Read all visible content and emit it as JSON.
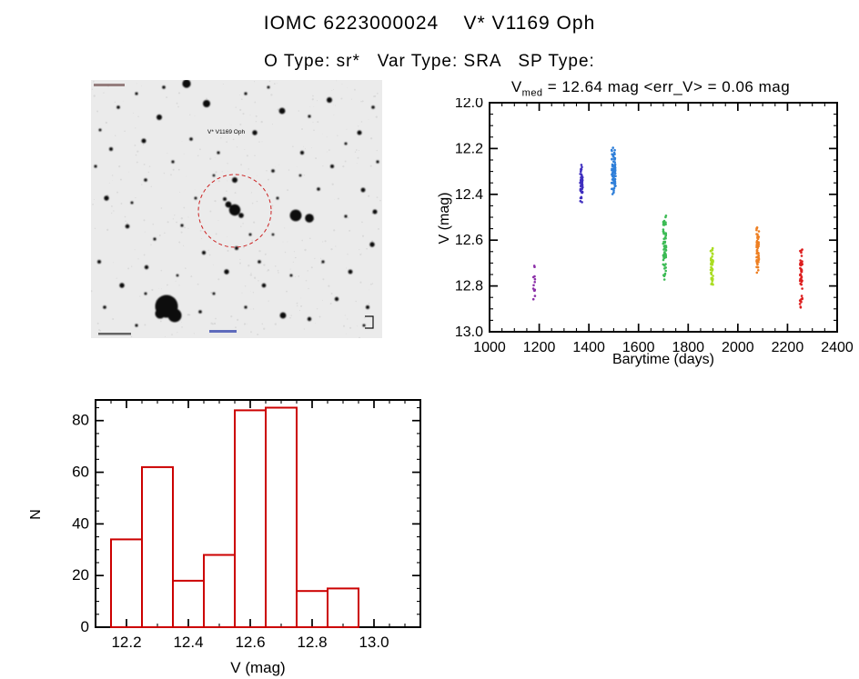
{
  "header": {
    "title": "IOMC 6223000024    V* V1169 Oph",
    "subtitle": "O Type: sr*   Var Type: SRA   SP Type:"
  },
  "finder": {
    "label": "V* V1169 Oph",
    "circle_color": "#cc2222",
    "background": "#ebebeb",
    "star_color": "#0a0a0a",
    "stars": [
      [
        158,
        143,
        6.2
      ],
      [
        151,
        137,
        3.4
      ],
      [
        165,
        149,
        2.8
      ],
      [
        147,
        131,
        2.0
      ],
      [
        158,
        110,
        3.0
      ],
      [
        160,
        185,
        2.0
      ],
      [
        225,
        149,
        6.4
      ],
      [
        240,
        152,
        4.8
      ],
      [
        83,
        249,
        12.5
      ],
      [
        92,
        259,
        7.5
      ],
      [
        76,
        257,
        5.5
      ],
      [
        105,
        4,
        4.6
      ],
      [
        127,
        26,
        4.0
      ],
      [
        210,
        34,
        3.4
      ],
      [
        262,
        22,
        3.0
      ],
      [
        295,
        58,
        2.5
      ],
      [
        180,
        58,
        2.7
      ],
      [
        75,
        41,
        3.0
      ],
      [
        58,
        67,
        2.5
      ],
      [
        22,
        76,
        2.0
      ],
      [
        30,
        30,
        1.8
      ],
      [
        50,
        15,
        1.6
      ],
      [
        80,
        8,
        1.8
      ],
      [
        170,
        15,
        1.6
      ],
      [
        195,
        8,
        1.5
      ],
      [
        240,
        40,
        1.6
      ],
      [
        310,
        30,
        1.8
      ],
      [
        315,
        90,
        1.6
      ],
      [
        10,
        55,
        1.5
      ],
      [
        110,
        65,
        1.8
      ],
      [
        140,
        80,
        1.6
      ],
      [
        90,
        90,
        1.6
      ],
      [
        265,
        95,
        2.0
      ],
      [
        232,
        80,
        2.1
      ],
      [
        280,
        70,
        1.5
      ],
      [
        200,
        100,
        1.8
      ],
      [
        230,
        105,
        1.4
      ],
      [
        250,
        120,
        1.8
      ],
      [
        299,
        121,
        2.4
      ],
      [
        312,
        145,
        2.5
      ],
      [
        280,
        150,
        1.6
      ],
      [
        309,
        181,
        2.7
      ],
      [
        285,
        211,
        2.4
      ],
      [
        304,
        250,
        2.0
      ],
      [
        270,
        241,
        2.2
      ],
      [
        255,
        200,
        1.6
      ],
      [
        220,
        215,
        1.5
      ],
      [
        211,
        259,
        3.4
      ],
      [
        240,
        263,
        2.2
      ],
      [
        300,
        270,
        1.5
      ],
      [
        185,
        200,
        1.8
      ],
      [
        190,
        226,
        2.3
      ],
      [
        170,
        250,
        1.6
      ],
      [
        149,
        211,
        2.7
      ],
      [
        135,
        235,
        1.5
      ],
      [
        120,
        255,
        1.8
      ],
      [
        124,
        190,
        2.1
      ],
      [
        100,
        160,
        1.6
      ],
      [
        115,
        130,
        1.5
      ],
      [
        135,
        105,
        1.4
      ],
      [
        60,
        110,
        1.8
      ],
      [
        5,
        95,
        1.6
      ],
      [
        17,
        130,
        2.7
      ],
      [
        45,
        135,
        1.5
      ],
      [
        40,
        161,
        2.3
      ],
      [
        70,
        175,
        1.6
      ],
      [
        9,
        200,
        2.0
      ],
      [
        61,
        206,
        2.2
      ],
      [
        34,
        226,
        2.7
      ],
      [
        15,
        250,
        1.8
      ],
      [
        50,
        270,
        1.6
      ],
      [
        60,
        235,
        1.5
      ],
      [
        95,
        215,
        1.4
      ],
      [
        175,
        170,
        1.5
      ],
      [
        200,
        170,
        1.4
      ],
      [
        205,
        130,
        1.5
      ]
    ]
  },
  "chart_data": [
    {
      "type": "scatter",
      "title_parts": {
        "base": "V",
        "sub": "med",
        "rest": " = 12.64 mag <err_V> = 0.06 mag"
      },
      "xlabel": "Barytime (days)",
      "ylabel": "V (mag)",
      "xlim": [
        1000,
        2400
      ],
      "ylim": [
        12.0,
        13.0
      ],
      "y_inverted": true,
      "xminor": 50,
      "yminor": 0.05,
      "xtick_values": [
        1000,
        1200,
        1400,
        1600,
        1800,
        2000,
        2200,
        2400
      ],
      "xtick_labels": [
        "1000",
        "1200",
        "1400",
        "1600",
        "1800",
        "2000",
        "2200",
        "2400"
      ],
      "ytick_values": [
        12.0,
        12.2,
        12.4,
        12.6,
        12.8,
        13.0
      ],
      "ytick_labels": [
        "12.0",
        "12.2",
        "12.4",
        "12.6",
        "12.8",
        "13.0"
      ],
      "grid": false,
      "clusters": [
        {
          "x": 1180,
          "xspread": 8,
          "ymin": 12.7,
          "ymax": 12.93,
          "n": 13,
          "color": "#8b2fa8"
        },
        {
          "x": 1370,
          "xspread": 10,
          "ymin": 12.26,
          "ymax": 12.44,
          "n": 50,
          "color": "#3f2fbf"
        },
        {
          "x": 1500,
          "xspread": 16,
          "ymin": 12.19,
          "ymax": 12.4,
          "n": 80,
          "color": "#2f7fd9"
        },
        {
          "x": 1705,
          "xspread": 12,
          "ymin": 12.49,
          "ymax": 12.78,
          "n": 70,
          "color": "#3dbb55"
        },
        {
          "x": 1895,
          "xspread": 10,
          "ymin": 12.62,
          "ymax": 12.8,
          "n": 45,
          "color": "#aadd22"
        },
        {
          "x": 2080,
          "xspread": 10,
          "ymin": 12.54,
          "ymax": 12.75,
          "n": 55,
          "color": "#ee7f22"
        },
        {
          "x": 2255,
          "xspread": 10,
          "ymin": 12.62,
          "ymax": 12.9,
          "n": 45,
          "color": "#dd1f1f"
        }
      ]
    },
    {
      "type": "bar",
      "title": "",
      "xlabel": "V (mag)",
      "ylabel": "N",
      "xlim": [
        12.1,
        13.15
      ],
      "ylim": [
        0,
        88
      ],
      "y_inverted": false,
      "xminor": 0.05,
      "yminor": 5,
      "xtick_values": [
        12.2,
        12.4,
        12.6,
        12.8,
        13.0
      ],
      "xtick_labels": [
        "12.2",
        "12.4",
        "12.6",
        "12.8",
        "13.0"
      ],
      "ytick_values": [
        0,
        20,
        40,
        60,
        80
      ],
      "ytick_labels": [
        "0",
        "20",
        "40",
        "60",
        "80"
      ],
      "bin_edges": [
        12.15,
        12.25,
        12.35,
        12.45,
        12.55,
        12.65,
        12.75,
        12.85,
        12.95
      ],
      "values": [
        34,
        62,
        18,
        28,
        84,
        85,
        14,
        15
      ],
      "color": "#cc0000",
      "grid": false
    }
  ]
}
